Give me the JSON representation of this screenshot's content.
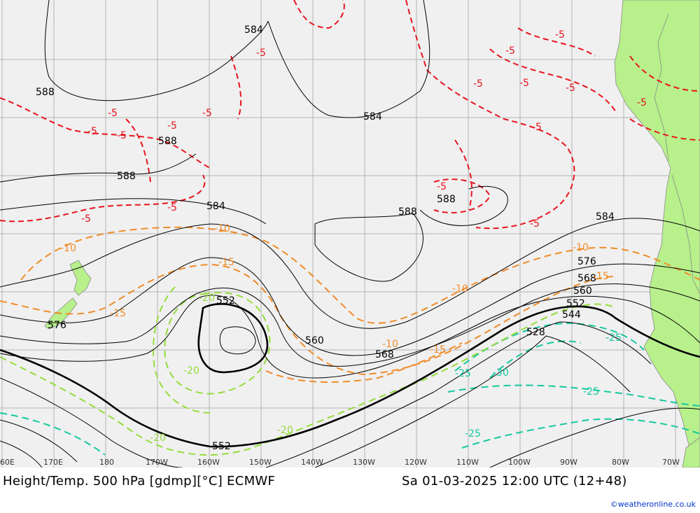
{
  "title": "Height/Temp. 500 hPa [gdmp][°C] ECMWF",
  "valid_time": "Sa 01-03-2025 12:00 UTC (12+48)",
  "credit": "©weatheronline.co.uk",
  "colors": {
    "ocean": "#f0f0f0",
    "land": "#b8f08c",
    "height_contours": "#000000",
    "temp_minus5": "#e8141e",
    "temp_minus10_15": "#f08c28",
    "temp_minus20": "#96dc3c",
    "temp_minus25_30": "#14c8a0",
    "grid": "#b4b4b4"
  },
  "lon_labels": [
    "60E",
    "170E",
    "180",
    "170W",
    "160W",
    "150W",
    "140W",
    "130W",
    "120W",
    "110W",
    "100W",
    "90W",
    "80W",
    "70W"
  ],
  "height_labels": [
    "584",
    "588",
    "588",
    "588",
    "584",
    "588",
    "588",
    "584",
    "584",
    "576",
    "576",
    "568",
    "560",
    "552",
    "552",
    "544",
    "528",
    "560",
    "568",
    "552"
  ],
  "temp_labels": [
    "-5",
    "-5",
    "-5",
    "-5",
    "-5",
    "-5",
    "-5",
    "-5",
    "-5",
    "-5",
    "-5",
    "-5",
    "-5",
    "-5",
    "-5",
    "-5",
    "-5",
    "-10",
    "-10",
    "-10",
    "-10",
    "-10",
    "-15",
    "-15",
    "-15",
    "-15",
    "-20",
    "-20",
    "-20",
    "-20",
    "-25",
    "-25",
    "-25",
    "-25",
    "-30"
  ],
  "map_legend": {
    "height_unit": "gdmp",
    "temp_unit": "°C"
  }
}
